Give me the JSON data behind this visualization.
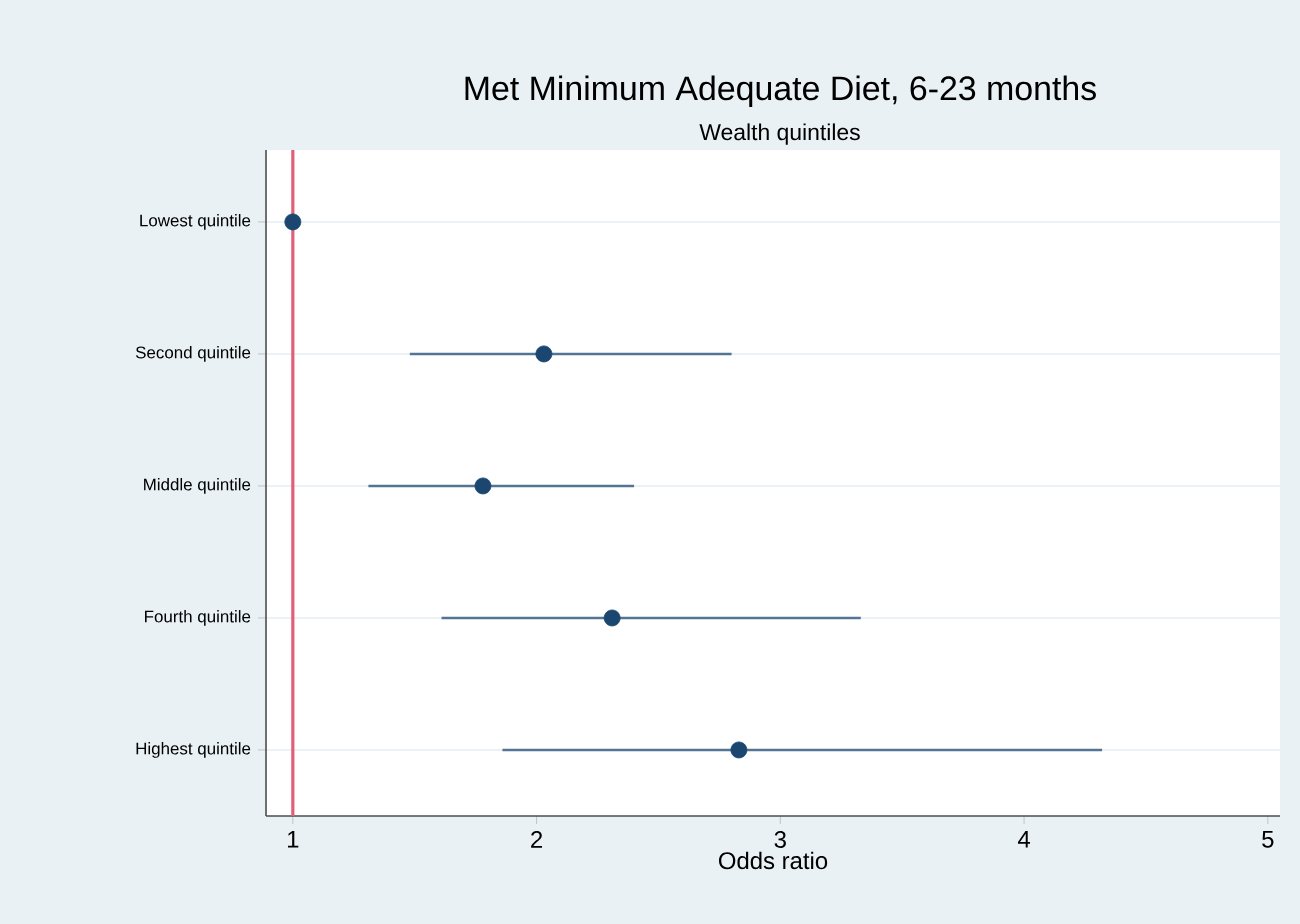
{
  "chart_data": {
    "type": "scatter",
    "orientation": "horizontal",
    "title": "Met Minimum Adequate Diet, 6-23 months",
    "subtitle": "Wealth quintiles",
    "xlabel": "Odds ratio",
    "categories": [
      "Lowest quintile",
      "Second quintile",
      "Middle quintile",
      "Fourth quintile",
      "Highest quintile"
    ],
    "values": [
      1.0,
      2.03,
      1.78,
      2.31,
      2.83
    ],
    "errors": [
      null,
      [
        1.48,
        2.8
      ],
      [
        1.31,
        2.4
      ],
      [
        1.61,
        3.33
      ],
      [
        1.86,
        4.32
      ]
    ],
    "color": "#1a4670",
    "xlim": [
      0.89,
      5.05
    ],
    "xticks": [
      1,
      2,
      3,
      4,
      5
    ],
    "ref_lines": [
      {
        "axis": "x",
        "value": 1,
        "color": "#e0607a"
      }
    ],
    "grid": "y",
    "marker": "circle"
  }
}
